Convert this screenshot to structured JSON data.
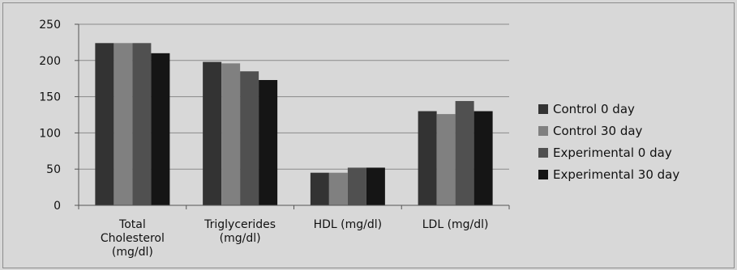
{
  "chart_data": {
    "type": "bar",
    "categories": [
      [
        "Total",
        "Cholesterol",
        "(mg/dl)"
      ],
      [
        "Triglycerides",
        "(mg/dl)"
      ],
      [
        "HDL (mg/dl)"
      ],
      [
        "LDL (mg/dl)"
      ]
    ],
    "series": [
      {
        "name": "Control 0 day",
        "color": "#333333",
        "values": [
          224,
          198,
          45,
          130
        ]
      },
      {
        "name": "Control 30 day",
        "color": "#808080",
        "values": [
          224,
          196,
          45,
          126
        ]
      },
      {
        "name": "Experimental 0 day",
        "color": "#505050",
        "values": [
          224,
          185,
          52,
          144
        ]
      },
      {
        "name": "Experimental 30 day",
        "color": "#151515",
        "values": [
          210,
          173,
          52,
          130
        ]
      }
    ],
    "ylim": [
      0,
      250
    ],
    "yticks": [
      "0",
      "50",
      "100",
      "150",
      "200",
      "250"
    ],
    "grid": true,
    "legend": "right"
  }
}
